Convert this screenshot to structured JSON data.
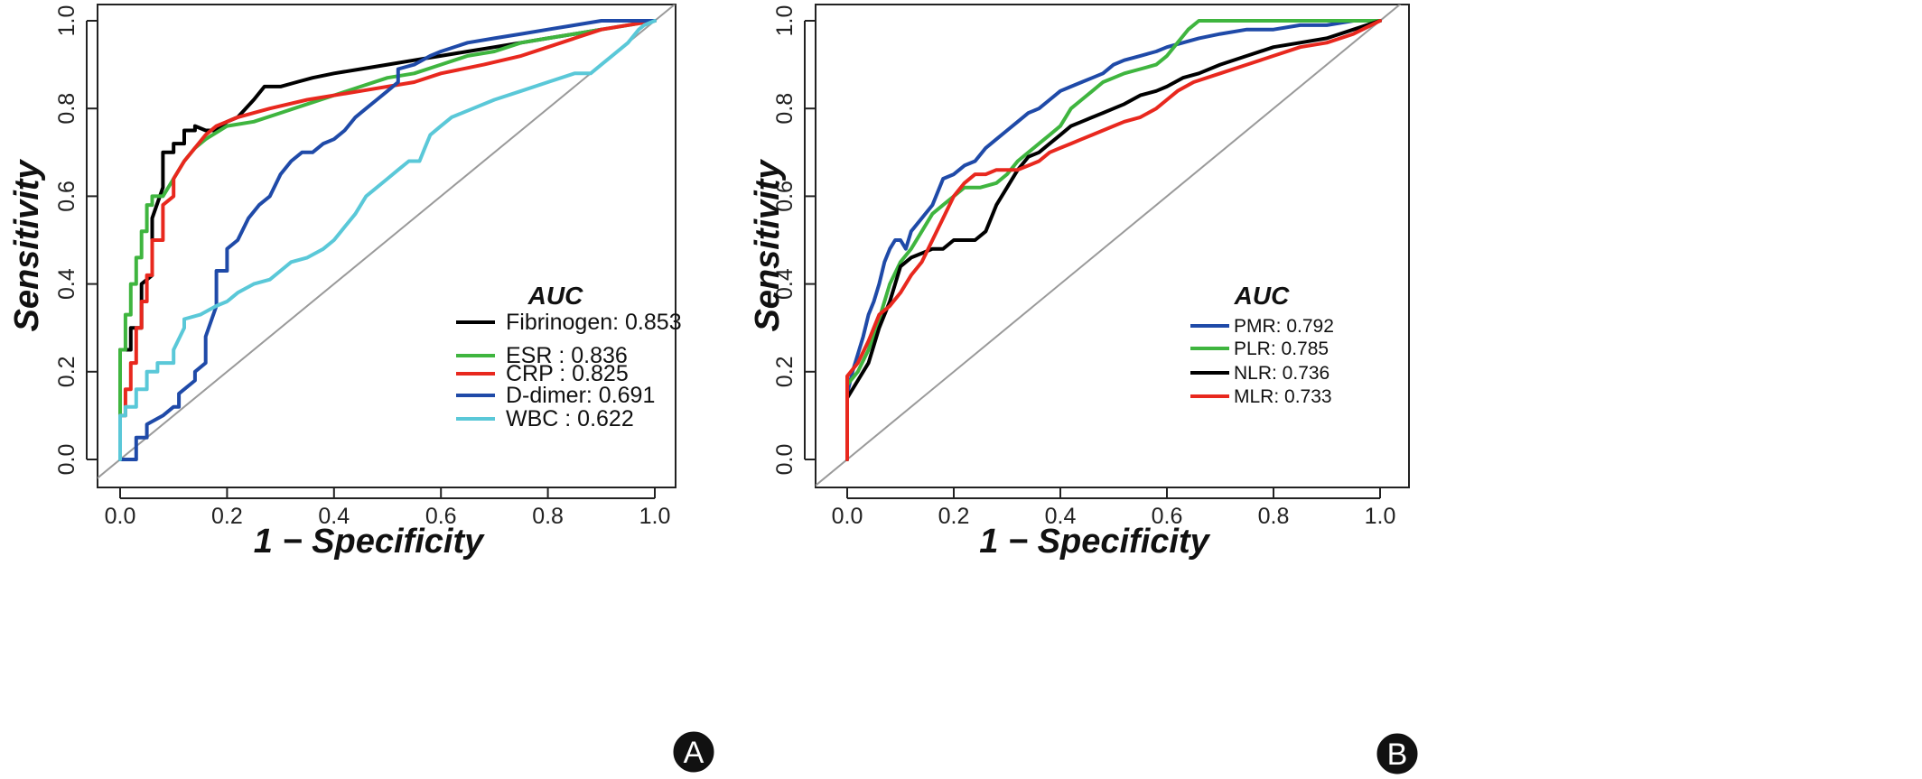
{
  "chart_data": [
    {
      "type": "line",
      "panel_label": "A",
      "xlabel": "1 − Specificity",
      "ylabel": "Sensitivity",
      "xlim": [
        0,
        1
      ],
      "ylim": [
        0,
        1
      ],
      "xticks": [
        "0.0",
        "0.2",
        "0.4",
        "0.6",
        "0.8",
        "1.0"
      ],
      "yticks": [
        "0.0",
        "0.2",
        "0.4",
        "0.6",
        "0.8",
        "1.0"
      ],
      "reference_line": true,
      "legend_title": "AUC",
      "legend_position": "bottom-right",
      "series": [
        {
          "name": "Fibrinogen",
          "auc_label": ": 0.853",
          "color": "#000000",
          "x": [
            0,
            0,
            0.02,
            0.02,
            0.04,
            0.04,
            0.06,
            0.06,
            0.08,
            0.08,
            0.1,
            0.1,
            0.12,
            0.12,
            0.14,
            0.14,
            0.16,
            0.18,
            0.2,
            0.22,
            0.25,
            0.27,
            0.3,
            0.33,
            0.36,
            0.4,
            0.45,
            0.5,
            0.55,
            0.6,
            0.65,
            0.7,
            0.75,
            0.8,
            0.85,
            0.9
          ],
          "y": [
            0,
            0.25,
            0.25,
            0.3,
            0.3,
            0.4,
            0.42,
            0.55,
            0.62,
            0.7,
            0.7,
            0.72,
            0.72,
            0.75,
            0.75,
            0.76,
            0.75,
            0.75,
            0.77,
            0.78,
            0.82,
            0.85,
            0.85,
            0.86,
            0.87,
            0.88,
            0.89,
            0.9,
            0.91,
            0.92,
            0.93,
            0.94,
            0.95,
            0.96,
            0.97,
            0.98
          ]
        },
        {
          "name": "ESR",
          "auc_label": "       : 0.836",
          "color": "#3fb53f",
          "x": [
            0,
            0,
            0.01,
            0.01,
            0.02,
            0.02,
            0.03,
            0.03,
            0.04,
            0.04,
            0.05,
            0.05,
            0.06,
            0.06,
            0.08,
            0.1,
            0.12,
            0.14,
            0.16,
            0.2,
            0.25,
            0.3,
            0.35,
            0.4,
            0.45,
            0.5,
            0.55,
            0.6,
            0.65,
            0.7,
            0.75,
            0.8,
            0.85,
            0.9,
            0.95,
            1
          ],
          "y": [
            0,
            0.25,
            0.25,
            0.33,
            0.33,
            0.4,
            0.4,
            0.46,
            0.46,
            0.52,
            0.52,
            0.58,
            0.58,
            0.6,
            0.6,
            0.64,
            0.68,
            0.71,
            0.73,
            0.76,
            0.77,
            0.79,
            0.81,
            0.83,
            0.85,
            0.87,
            0.88,
            0.9,
            0.92,
            0.93,
            0.95,
            0.96,
            0.97,
            0.98,
            0.99,
            1
          ]
        },
        {
          "name": "CRP",
          "auc_label": "       : 0.825",
          "color": "#e8281e",
          "x": [
            0,
            0,
            0.01,
            0.01,
            0.02,
            0.02,
            0.03,
            0.03,
            0.04,
            0.04,
            0.05,
            0.05,
            0.06,
            0.06,
            0.08,
            0.08,
            0.1,
            0.1,
            0.12,
            0.14,
            0.16,
            0.18,
            0.22,
            0.28,
            0.35,
            0.45,
            0.55,
            0.6,
            0.68,
            0.75,
            0.8,
            0.85,
            0.9,
            1
          ],
          "y": [
            0,
            0.1,
            0.1,
            0.16,
            0.16,
            0.22,
            0.22,
            0.3,
            0.3,
            0.36,
            0.36,
            0.42,
            0.42,
            0.5,
            0.5,
            0.58,
            0.6,
            0.64,
            0.68,
            0.71,
            0.74,
            0.76,
            0.78,
            0.8,
            0.82,
            0.84,
            0.86,
            0.88,
            0.9,
            0.92,
            0.94,
            0.96,
            0.98,
            1
          ]
        },
        {
          "name": "D-dimer",
          "auc_label": ": 0.691",
          "color": "#1f4aa8",
          "x": [
            0,
            0.03,
            0.03,
            0.05,
            0.05,
            0.08,
            0.1,
            0.11,
            0.11,
            0.14,
            0.14,
            0.16,
            0.16,
            0.18,
            0.18,
            0.2,
            0.2,
            0.22,
            0.24,
            0.26,
            0.28,
            0.3,
            0.32,
            0.34,
            0.36,
            0.38,
            0.4,
            0.42,
            0.44,
            0.46,
            0.48,
            0.5,
            0.52,
            0.52,
            0.55,
            0.58,
            0.6,
            0.65,
            0.7,
            0.75,
            0.8,
            0.85,
            0.9,
            1
          ],
          "y": [
            0,
            0,
            0.05,
            0.05,
            0.08,
            0.1,
            0.12,
            0.12,
            0.15,
            0.18,
            0.2,
            0.22,
            0.28,
            0.35,
            0.43,
            0.43,
            0.48,
            0.5,
            0.55,
            0.58,
            0.6,
            0.65,
            0.68,
            0.7,
            0.7,
            0.72,
            0.73,
            0.75,
            0.78,
            0.8,
            0.82,
            0.84,
            0.86,
            0.89,
            0.9,
            0.92,
            0.93,
            0.95,
            0.96,
            0.97,
            0.98,
            0.99,
            1,
            1
          ]
        },
        {
          "name": "WBC",
          "auc_label": "      : 0.622",
          "color": "#5ac8d8",
          "x": [
            0,
            0,
            0.01,
            0.01,
            0.03,
            0.03,
            0.05,
            0.05,
            0.07,
            0.07,
            0.1,
            0.1,
            0.12,
            0.12,
            0.15,
            0.18,
            0.2,
            0.22,
            0.25,
            0.28,
            0.3,
            0.32,
            0.35,
            0.38,
            0.4,
            0.42,
            0.44,
            0.46,
            0.48,
            0.5,
            0.52,
            0.54,
            0.56,
            0.57,
            0.58,
            0.6,
            0.62,
            0.66,
            0.7,
            0.75,
            0.8,
            0.85,
            0.88,
            0.9,
            0.92,
            0.95,
            0.97,
            0.98,
            1
          ],
          "y": [
            0,
            0.1,
            0.1,
            0.12,
            0.12,
            0.16,
            0.16,
            0.2,
            0.2,
            0.22,
            0.22,
            0.25,
            0.3,
            0.32,
            0.33,
            0.35,
            0.36,
            0.38,
            0.4,
            0.41,
            0.43,
            0.45,
            0.46,
            0.48,
            0.5,
            0.53,
            0.56,
            0.6,
            0.62,
            0.64,
            0.66,
            0.68,
            0.68,
            0.71,
            0.74,
            0.76,
            0.78,
            0.8,
            0.82,
            0.84,
            0.86,
            0.88,
            0.88,
            0.9,
            0.92,
            0.95,
            0.98,
            0.99,
            1
          ]
        }
      ]
    },
    {
      "type": "line",
      "panel_label": "B",
      "xlabel": "1 − Specificity",
      "ylabel": "Sensitivity",
      "xlim": [
        0,
        1
      ],
      "ylim": [
        0,
        1
      ],
      "xticks": [
        "0.0",
        "0.2",
        "0.4",
        "0.6",
        "0.8",
        "1.0"
      ],
      "yticks": [
        "0.0",
        "0.2",
        "0.4",
        "0.6",
        "0.8",
        "1.0"
      ],
      "reference_line": true,
      "legend_title": "AUC",
      "legend_position": "bottom-right",
      "series": [
        {
          "name": "PMR",
          "auc_label": ": 0.792",
          "color": "#1f4aa8",
          "x": [
            0,
            0,
            0.01,
            0.02,
            0.03,
            0.04,
            0.05,
            0.06,
            0.07,
            0.08,
            0.09,
            0.1,
            0.11,
            0.12,
            0.14,
            0.16,
            0.18,
            0.2,
            0.22,
            0.24,
            0.26,
            0.28,
            0.3,
            0.32,
            0.34,
            0.36,
            0.38,
            0.4,
            0.42,
            0.44,
            0.46,
            0.48,
            0.5,
            0.52,
            0.55,
            0.58,
            0.6,
            0.63,
            0.66,
            0.7,
            0.75,
            0.8,
            0.85,
            0.9,
            0.95,
            1
          ],
          "y": [
            0,
            0.15,
            0.2,
            0.24,
            0.28,
            0.33,
            0.36,
            0.4,
            0.45,
            0.48,
            0.5,
            0.5,
            0.48,
            0.52,
            0.55,
            0.58,
            0.64,
            0.65,
            0.67,
            0.68,
            0.71,
            0.73,
            0.75,
            0.77,
            0.79,
            0.8,
            0.82,
            0.84,
            0.85,
            0.86,
            0.87,
            0.88,
            0.9,
            0.91,
            0.92,
            0.93,
            0.94,
            0.95,
            0.96,
            0.97,
            0.98,
            0.98,
            0.99,
            0.99,
            1,
            1
          ]
        },
        {
          "name": "PLR",
          "auc_label": ": 0.785",
          "color": "#3fb53f",
          "x": [
            0,
            0,
            0.02,
            0.04,
            0.06,
            0.08,
            0.1,
            0.12,
            0.14,
            0.16,
            0.18,
            0.2,
            0.22,
            0.25,
            0.28,
            0.3,
            0.32,
            0.34,
            0.36,
            0.38,
            0.4,
            0.42,
            0.44,
            0.46,
            0.48,
            0.5,
            0.52,
            0.55,
            0.58,
            0.6,
            0.62,
            0.64,
            0.66,
            0.7,
            0.75,
            0.8,
            0.85,
            0.9,
            0.95,
            1
          ],
          "y": [
            0,
            0.17,
            0.2,
            0.25,
            0.32,
            0.4,
            0.45,
            0.48,
            0.52,
            0.56,
            0.58,
            0.6,
            0.62,
            0.62,
            0.63,
            0.65,
            0.68,
            0.7,
            0.72,
            0.74,
            0.76,
            0.8,
            0.82,
            0.84,
            0.86,
            0.87,
            0.88,
            0.89,
            0.9,
            0.92,
            0.95,
            0.98,
            1,
            1,
            1,
            1,
            1,
            1,
            1,
            1
          ]
        },
        {
          "name": "NLR",
          "auc_label": ": 0.736",
          "color": "#000000",
          "x": [
            0,
            0,
            0.02,
            0.04,
            0.06,
            0.08,
            0.1,
            0.12,
            0.14,
            0.16,
            0.18,
            0.2,
            0.22,
            0.24,
            0.26,
            0.28,
            0.3,
            0.32,
            0.34,
            0.36,
            0.38,
            0.4,
            0.42,
            0.44,
            0.46,
            0.48,
            0.5,
            0.52,
            0.55,
            0.58,
            0.6,
            0.63,
            0.66,
            0.7,
            0.75,
            0.8,
            0.85,
            0.9,
            0.95,
            1
          ],
          "y": [
            0,
            0.14,
            0.18,
            0.22,
            0.3,
            0.36,
            0.44,
            0.46,
            0.47,
            0.48,
            0.48,
            0.5,
            0.5,
            0.5,
            0.52,
            0.58,
            0.62,
            0.66,
            0.69,
            0.7,
            0.72,
            0.74,
            0.76,
            0.77,
            0.78,
            0.79,
            0.8,
            0.81,
            0.83,
            0.84,
            0.85,
            0.87,
            0.88,
            0.9,
            0.92,
            0.94,
            0.95,
            0.96,
            0.98,
            1
          ]
        },
        {
          "name": "MLR",
          "auc_label": ": 0.733",
          "color": "#e8281e",
          "x": [
            0,
            0,
            0.02,
            0.04,
            0.06,
            0.08,
            0.1,
            0.12,
            0.14,
            0.16,
            0.18,
            0.2,
            0.22,
            0.24,
            0.26,
            0.28,
            0.3,
            0.32,
            0.34,
            0.36,
            0.38,
            0.4,
            0.42,
            0.44,
            0.46,
            0.48,
            0.5,
            0.52,
            0.55,
            0.58,
            0.6,
            0.62,
            0.65,
            0.7,
            0.75,
            0.8,
            0.85,
            0.9,
            0.95,
            1
          ],
          "y": [
            0,
            0.19,
            0.22,
            0.27,
            0.33,
            0.35,
            0.38,
            0.42,
            0.45,
            0.5,
            0.55,
            0.6,
            0.63,
            0.65,
            0.65,
            0.66,
            0.66,
            0.66,
            0.67,
            0.68,
            0.7,
            0.71,
            0.72,
            0.73,
            0.74,
            0.75,
            0.76,
            0.77,
            0.78,
            0.8,
            0.82,
            0.84,
            0.86,
            0.88,
            0.9,
            0.92,
            0.94,
            0.95,
            0.97,
            1
          ]
        }
      ]
    }
  ]
}
